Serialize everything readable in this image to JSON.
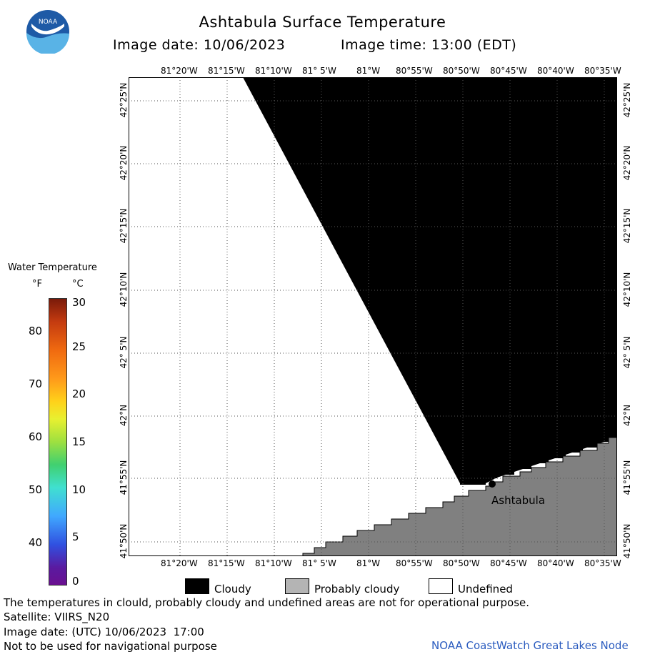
{
  "header": {
    "title": "Ashtabula Surface Temperature",
    "image_date_label": "Image date: 10/06/2023",
    "image_time_label": "Image time: 13:00 (EDT)"
  },
  "logo": {
    "text": "NOAA",
    "colors": {
      "dark": "#1e5aa6",
      "light": "#59b3e6"
    }
  },
  "map": {
    "lon_ticks": [
      "81°20'W",
      "81°15'W",
      "81°10'W",
      "81° 5'W",
      "81°W",
      "80°55'W",
      "80°50'W",
      "80°45'W",
      "80°40'W",
      "80°35'W"
    ],
    "lat_ticks": [
      "42°25'N",
      "42°20'N",
      "42°15'N",
      "42°10'N",
      "42° 5'N",
      "42°N",
      "41°55'N",
      "41°50'N"
    ],
    "place_label": "Ashtabula",
    "colors": {
      "cloud": "#000000",
      "land": "#808080",
      "undefined": "#ffffff",
      "grid": "#555555"
    }
  },
  "scale": {
    "title": "Water Temperature",
    "f_header": "°F",
    "c_header": "°C",
    "f_values": [
      "80",
      "70",
      "60",
      "50",
      "40"
    ],
    "c_values": [
      "30",
      "25",
      "20",
      "15",
      "10",
      "5",
      "0"
    ]
  },
  "legend": {
    "items": [
      {
        "label": "Cloudy",
        "color": "#000000"
      },
      {
        "label": "Probably cloudy",
        "color": "#b4b4b4"
      },
      {
        "label": "Undefined",
        "color": "#ffffff"
      }
    ]
  },
  "footer": {
    "note": "The temperatures in clould, probably cloudy and undefined areas are not for operational purpose.",
    "satellite": "Satellite: VIIRS_N20",
    "utc_date": "Image date: (UTC) 10/06/2023  17:00",
    "nav_warning": "Not to be used for navigational purpose",
    "credit": "NOAA CoastWatch Great Lakes Node"
  }
}
